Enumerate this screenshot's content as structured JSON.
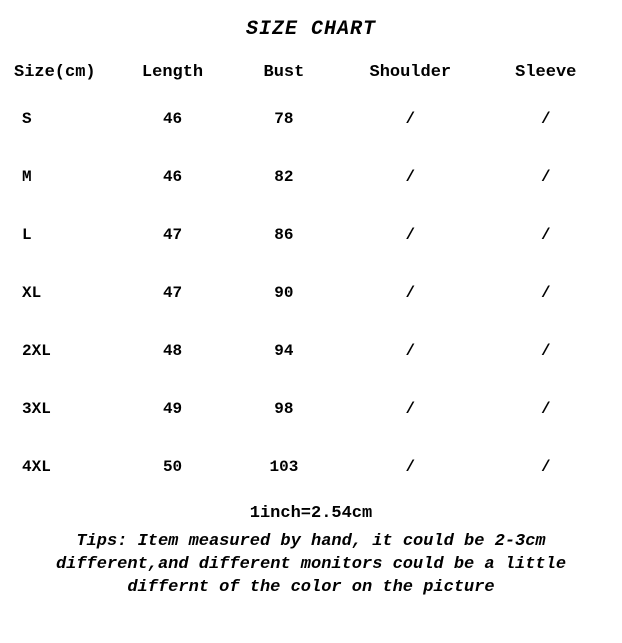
{
  "title": "SIZE CHART",
  "columns": [
    "Size(cm)",
    "Length",
    "Bust",
    "Shoulder",
    "Sleeve"
  ],
  "rows": [
    [
      "S",
      "46",
      "78",
      "/",
      "/"
    ],
    [
      "M",
      "46",
      "82",
      "/",
      "/"
    ],
    [
      "L",
      "47",
      "86",
      "/",
      "/"
    ],
    [
      "XL",
      "47",
      "90",
      "/",
      "/"
    ],
    [
      "2XL",
      "48",
      "94",
      "/",
      "/"
    ],
    [
      "3XL",
      "49",
      "98",
      "/",
      "/"
    ],
    [
      "4XL",
      "50",
      "103",
      "/",
      "/"
    ]
  ],
  "conversion": "1inch=2.54cm",
  "tips": "Tips: Item measured by hand, it could be 2-3cm different,and different monitors could be a little differnt of the color on the picture",
  "styling": {
    "type": "table",
    "background_color": "#ffffff",
    "text_color": "#000000",
    "font_family": "Courier New, monospace",
    "title_fontsize": 20,
    "title_style": "italic bold",
    "header_fontsize": 17,
    "header_weight": "bold",
    "cell_fontsize": 16,
    "cell_weight": "bold",
    "tips_fontsize": 17,
    "tips_style": "italic bold",
    "row_spacing": 40,
    "column_widths_pct": [
      18,
      18,
      19,
      23,
      22
    ],
    "column_align": [
      "left",
      "center",
      "center",
      "center",
      "center"
    ]
  }
}
